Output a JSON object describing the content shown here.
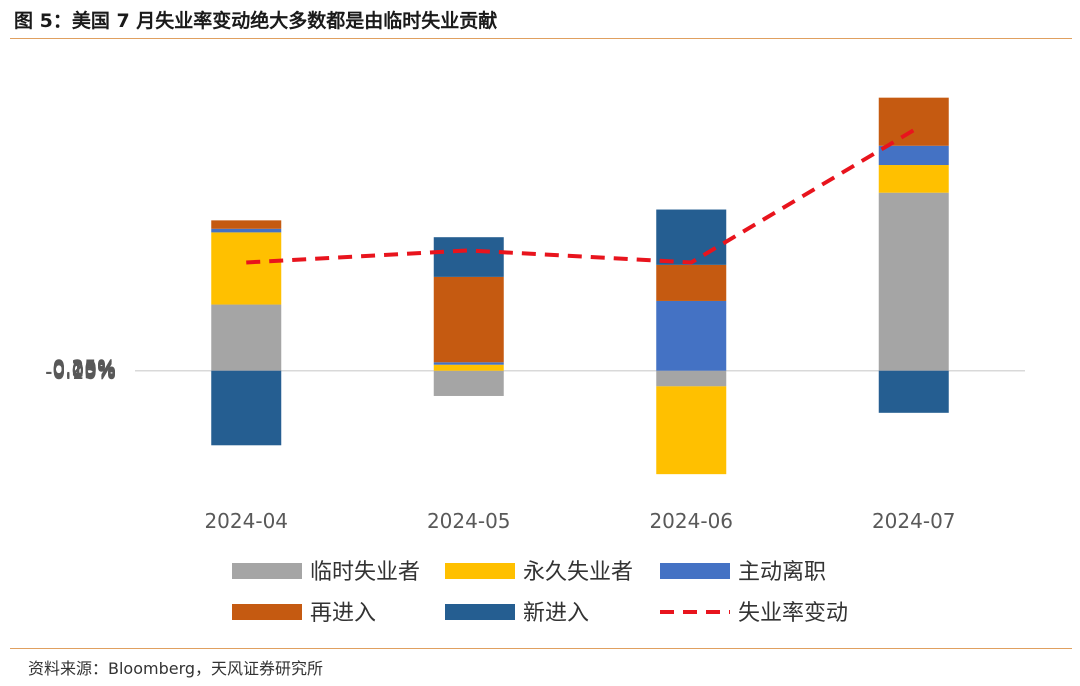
{
  "figure": {
    "title": "图 5：美国 7 月失业率变动绝大多数都是由临时失业贡献",
    "source": "资料来源：Bloomberg，天风证券研究所"
  },
  "chart_data": {
    "type": "bar",
    "stacked": true,
    "categories": [
      "2024-04",
      "2024-05",
      "2024-06",
      "2024-07"
    ],
    "y_ticks": [
      "0.25%",
      "0.20%",
      "0.15%",
      "0.10%",
      "0.05%",
      "0.00%",
      "-0.05%",
      "-0.10%"
    ],
    "ylim": [
      -0.1,
      0.25
    ],
    "series": [
      {
        "name": "临时失业者",
        "color": "#a5a5a5",
        "values": [
          0.055,
          -0.021,
          -0.013,
          0.148
        ]
      },
      {
        "name": "永久失业者",
        "color": "#ffc000",
        "values": [
          0.06,
          0.005,
          -0.073,
          0.023
        ]
      },
      {
        "name": "主动离职",
        "color": "#4472c4",
        "values": [
          0.003,
          0.002,
          0.058,
          0.016
        ]
      },
      {
        "name": "再进入",
        "color": "#c55a11",
        "values": [
          0.007,
          0.071,
          0.03,
          0.04
        ]
      },
      {
        "name": "新进入",
        "color": "#255e91",
        "values": [
          -0.062,
          0.033,
          0.046,
          -0.035
        ]
      }
    ],
    "line": {
      "name": "失业率变动",
      "color": "#e8141d",
      "style": "dashed",
      "values": [
        0.09,
        0.1,
        0.09,
        0.2
      ]
    },
    "legend_position": "bottom",
    "grid": false
  }
}
